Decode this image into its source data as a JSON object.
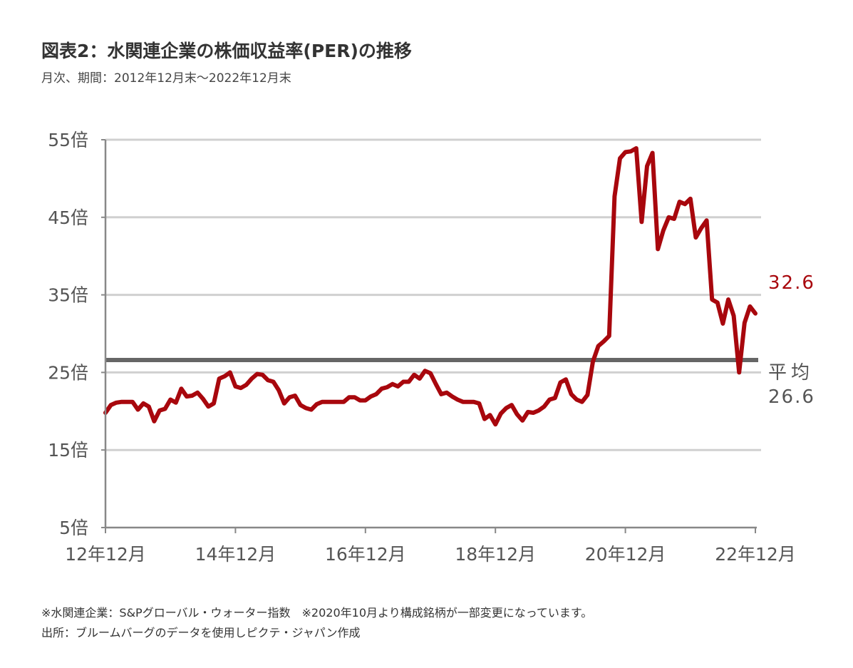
{
  "header": {
    "title": "図表2：水関連企業の株価収益率(PER)の推移",
    "subtitle": "月次、期間：2012年12月末～2022年12月末"
  },
  "footer": {
    "note": "※水関連企業：S&Pグローバル・ウォーター指数　※2020年10月より構成銘柄が一部変更になっています。",
    "source": "出所：ブルームバーグのデータを使用しピクテ・ジャパン作成"
  },
  "colors": {
    "series": "#a8070d",
    "average": "#666666",
    "grid": "#d0d0d0",
    "axis": "#888888"
  },
  "chart_data": {
    "type": "line",
    "title": "",
    "xlabel": "",
    "ylabel": "",
    "ylim": [
      5,
      55
    ],
    "y_ticks": [
      5,
      15,
      25,
      35,
      45,
      55
    ],
    "y_tick_labels": [
      "5倍",
      "15倍",
      "25倍",
      "35倍",
      "45倍",
      "55倍"
    ],
    "x_tick_labels": [
      "12年12月",
      "14年12月",
      "16年12月",
      "18年12月",
      "20年12月",
      "22年12月"
    ],
    "x_start": "2012-12",
    "x_end": "2022-12",
    "grid": true,
    "average": {
      "label": "平均",
      "value": 26.6,
      "value_label": "26.6"
    },
    "last_value_label": "32.6",
    "series": [
      {
        "values": [
          19.8,
          20.8,
          21.1,
          21.2,
          21.2,
          21.2,
          20.2,
          21.0,
          20.6,
          18.7,
          20.1,
          20.3,
          21.5,
          21.1,
          22.9,
          21.9,
          22.0,
          22.4,
          21.6,
          20.6,
          21.0,
          24.2,
          24.5,
          25.0,
          23.2,
          23.0,
          23.4,
          24.2,
          24.8,
          24.7,
          24.0,
          23.8,
          22.7,
          21.0,
          21.8,
          22.0,
          20.8,
          20.4,
          20.2,
          20.9,
          21.2,
          21.2,
          21.2,
          21.2,
          21.2,
          21.8,
          21.8,
          21.4,
          21.4,
          21.9,
          22.2,
          22.9,
          23.1,
          23.5,
          23.2,
          23.8,
          23.8,
          24.7,
          24.2,
          25.2,
          24.9,
          23.5,
          22.2,
          22.4,
          21.9,
          21.5,
          21.2,
          21.2,
          21.2,
          21.0,
          19.0,
          19.5,
          18.3,
          19.7,
          20.4,
          20.8,
          19.6,
          18.8,
          19.9,
          19.8,
          20.1,
          20.6,
          21.5,
          21.7,
          23.7,
          24.1,
          22.2,
          21.5,
          21.2,
          22.1,
          26.4,
          28.4,
          29.0,
          29.7,
          47.7,
          52.6,
          53.4,
          53.5,
          53.9,
          44.4,
          51.6,
          53.3,
          40.9,
          43.3,
          45.0,
          44.8,
          47.0,
          46.7,
          47.4,
          42.4,
          43.6,
          44.6,
          34.4,
          34.0,
          31.3,
          34.4,
          32.3,
          25.0,
          31.4,
          33.5,
          32.6
        ]
      }
    ]
  }
}
